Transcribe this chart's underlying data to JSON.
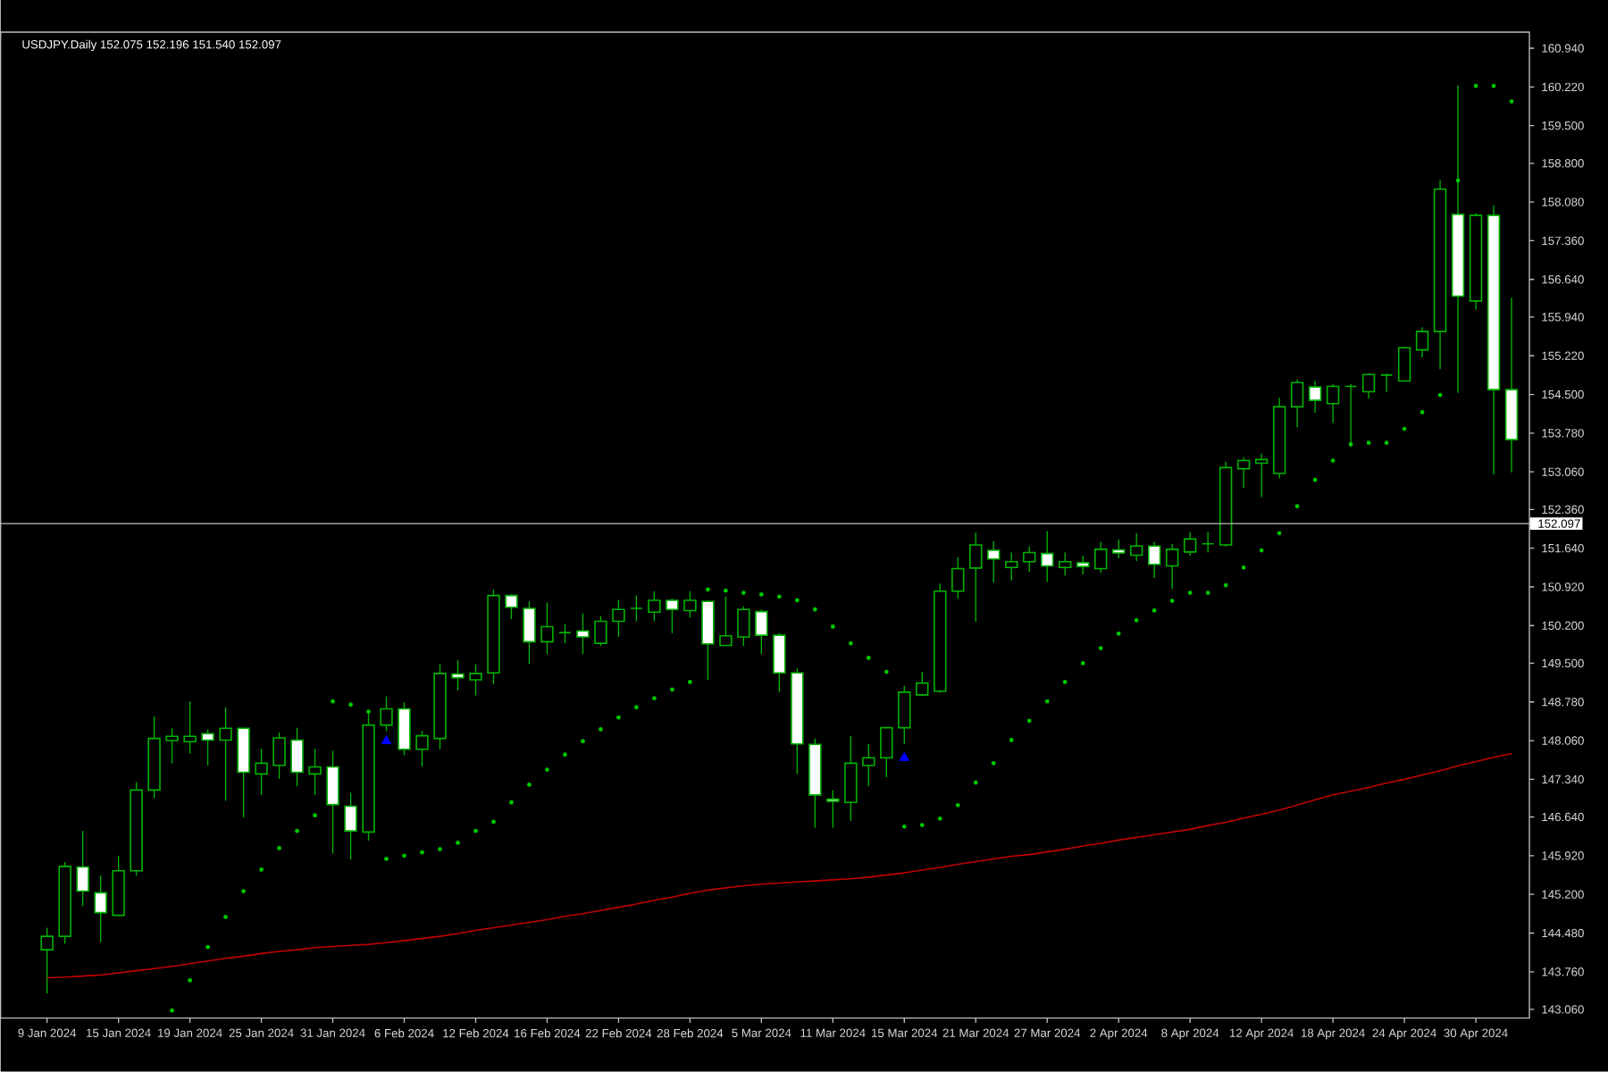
{
  "chart_data": {
    "type": "candlestick",
    "title": "USDJPY.Daily  152.075 152.196 151.540 152.097",
    "categories": [
      "9 Jan 2024",
      null,
      null,
      null,
      "15 Jan 2024",
      null,
      null,
      null,
      "19 Jan 2024",
      null,
      null,
      null,
      "25 Jan 2024",
      null,
      null,
      null,
      "31 Jan 2024",
      null,
      null,
      null,
      "6 Feb 2024",
      null,
      null,
      null,
      "12 Feb 2024",
      null,
      null,
      null,
      "16 Feb 2024",
      null,
      null,
      null,
      "22 Feb 2024",
      null,
      null,
      null,
      "28 Feb 2024",
      null,
      null,
      null,
      "5 Mar 2024",
      null,
      null,
      null,
      "11 Mar 2024",
      null,
      null,
      null,
      "15 Mar 2024",
      null,
      null,
      null,
      "21 Mar 2024",
      null,
      null,
      null,
      "27 Mar 2024",
      null,
      null,
      null,
      "2 Apr 2024",
      null,
      null,
      null,
      "8 Apr 2024",
      null,
      null,
      null,
      "12 Apr 2024",
      null,
      null,
      null,
      "18 Apr 2024",
      null,
      null,
      null,
      "24 Apr 2024",
      null,
      null,
      null,
      "30 Apr 2024",
      null,
      null
    ],
    "series": [
      {
        "color": "#00b400",
        "ohlc": [
          [
            144.17,
            144.58,
            143.36,
            144.42
          ],
          [
            144.42,
            145.8,
            144.28,
            145.72
          ],
          [
            145.71,
            146.38,
            144.98,
            145.26
          ],
          [
            145.23,
            145.55,
            144.31,
            144.86
          ],
          [
            144.81,
            145.92,
            144.8,
            145.64
          ],
          [
            145.64,
            147.29,
            145.55,
            147.14
          ],
          [
            147.14,
            148.51,
            146.99,
            148.1
          ],
          [
            148.06,
            148.29,
            147.64,
            148.14
          ],
          [
            148.04,
            148.79,
            147.82,
            148.14
          ],
          [
            148.19,
            148.27,
            147.6,
            148.07
          ],
          [
            148.07,
            148.68,
            146.94,
            148.29
          ],
          [
            148.29,
            148.3,
            146.63,
            147.47
          ],
          [
            147.44,
            147.91,
            147.05,
            147.64
          ],
          [
            147.6,
            148.21,
            147.35,
            148.11
          ],
          [
            148.07,
            148.3,
            147.21,
            147.47
          ],
          [
            147.44,
            147.91,
            147.05,
            147.57
          ],
          [
            147.57,
            147.87,
            145.96,
            146.87
          ],
          [
            146.84,
            147.09,
            145.85,
            146.38
          ],
          [
            146.36,
            148.6,
            146.2,
            148.35
          ],
          [
            148.35,
            148.88,
            148.24,
            148.65
          ],
          [
            148.65,
            148.77,
            147.79,
            147.9
          ],
          [
            147.9,
            148.24,
            147.58,
            148.15
          ],
          [
            148.1,
            149.48,
            147.9,
            149.31
          ],
          [
            149.3,
            149.56,
            148.99,
            149.23
          ],
          [
            149.19,
            149.48,
            148.9,
            149.31
          ],
          [
            149.32,
            150.87,
            149.11,
            150.76
          ],
          [
            150.76,
            150.78,
            150.32,
            150.54
          ],
          [
            150.52,
            150.65,
            149.49,
            149.9
          ],
          [
            149.9,
            150.63,
            149.67,
            150.18
          ],
          [
            150.07,
            150.23,
            149.87,
            150.07
          ],
          [
            150.1,
            150.43,
            149.67,
            149.99
          ],
          [
            149.87,
            150.38,
            149.82,
            150.28
          ],
          [
            150.28,
            150.68,
            149.99,
            150.5
          ],
          [
            150.52,
            150.76,
            150.28,
            150.52
          ],
          [
            150.45,
            150.84,
            150.28,
            150.67
          ],
          [
            150.67,
            150.7,
            150.06,
            150.5
          ],
          [
            150.48,
            150.84,
            150.35,
            150.67
          ],
          [
            150.65,
            150.67,
            149.19,
            149.86
          ],
          [
            149.83,
            150.74,
            149.82,
            150.01
          ],
          [
            149.99,
            150.56,
            149.82,
            150.5
          ],
          [
            150.46,
            150.5,
            149.67,
            150.02
          ],
          [
            150.02,
            150.06,
            148.96,
            149.32
          ],
          [
            149.32,
            149.4,
            147.44,
            148.0
          ],
          [
            147.99,
            148.1,
            146.44,
            147.05
          ],
          [
            146.97,
            147.14,
            146.44,
            146.93
          ],
          [
            146.91,
            148.15,
            146.57,
            147.64
          ],
          [
            147.6,
            148.0,
            147.21,
            147.74
          ],
          [
            147.74,
            148.32,
            147.38,
            148.3
          ],
          [
            148.3,
            149.08,
            148.0,
            148.96
          ],
          [
            148.91,
            149.34,
            148.9,
            149.13
          ],
          [
            148.98,
            150.98,
            148.95,
            150.84
          ],
          [
            150.84,
            151.47,
            150.7,
            151.26
          ],
          [
            151.27,
            151.93,
            150.27,
            151.7
          ],
          [
            151.6,
            151.77,
            151.0,
            151.44
          ],
          [
            151.28,
            151.56,
            151.04,
            151.39
          ],
          [
            151.39,
            151.67,
            151.2,
            151.56
          ],
          [
            151.54,
            151.96,
            151.01,
            151.31
          ],
          [
            151.28,
            151.56,
            151.13,
            151.39
          ],
          [
            151.37,
            151.5,
            151.15,
            151.3
          ],
          [
            151.26,
            151.76,
            151.18,
            151.62
          ],
          [
            151.61,
            151.8,
            151.45,
            151.55
          ],
          [
            151.51,
            151.92,
            151.4,
            151.68
          ],
          [
            151.68,
            151.76,
            151.09,
            151.34
          ],
          [
            151.31,
            151.72,
            150.88,
            151.62
          ],
          [
            151.57,
            151.94,
            151.5,
            151.81
          ],
          [
            151.72,
            151.94,
            151.56,
            151.72
          ],
          [
            151.7,
            153.25,
            151.67,
            153.14
          ],
          [
            153.12,
            153.33,
            152.76,
            153.27
          ],
          [
            153.22,
            153.4,
            152.59,
            153.29
          ],
          [
            153.03,
            154.44,
            152.94,
            154.27
          ],
          [
            154.27,
            154.78,
            153.89,
            154.72
          ],
          [
            154.64,
            154.75,
            154.16,
            154.39
          ],
          [
            154.33,
            154.69,
            153.97,
            154.65
          ],
          [
            154.65,
            154.69,
            153.56,
            154.65
          ],
          [
            154.55,
            154.89,
            154.42,
            154.87
          ],
          [
            154.86,
            154.89,
            154.55,
            154.86
          ],
          [
            154.75,
            155.39,
            154.74,
            155.37
          ],
          [
            155.33,
            155.75,
            155.19,
            155.67
          ],
          [
            155.67,
            158.48,
            154.97,
            158.32
          ],
          [
            157.85,
            160.25,
            154.53,
            156.33
          ],
          [
            156.24,
            157.87,
            156.08,
            157.83
          ],
          [
            157.83,
            158.02,
            153.01,
            154.59
          ],
          [
            154.59,
            156.3,
            153.05,
            153.66
          ]
        ]
      },
      {
        "type": "scatter",
        "color": "#00c800",
        "marker": "circle",
        "values": [
          null,
          null,
          null,
          null,
          null,
          null,
          null,
          143.04,
          143.6,
          144.22,
          144.78,
          145.26,
          145.66,
          146.06,
          146.38,
          146.67,
          148.79,
          148.73,
          148.6,
          145.86,
          145.92,
          145.98,
          146.04,
          146.16,
          146.38,
          146.55,
          146.91,
          147.24,
          147.52,
          147.8,
          148.05,
          148.27,
          148.49,
          148.68,
          148.85,
          149.01,
          149.15,
          150.87,
          150.85,
          150.81,
          150.78,
          150.74,
          150.67,
          150.5,
          150.18,
          149.87,
          149.6,
          149.34,
          146.46,
          146.49,
          146.61,
          146.86,
          147.28,
          147.64,
          148.07,
          148.43,
          148.79,
          149.15,
          149.5,
          149.78,
          150.05,
          150.3,
          150.48,
          150.66,
          150.81,
          150.81,
          150.95,
          151.28,
          151.6,
          151.92,
          152.42,
          152.91,
          153.27,
          153.57,
          153.6,
          153.6,
          153.86,
          154.17,
          154.49,
          158.48,
          160.24,
          160.24,
          159.95
        ]
      },
      {
        "type": "scatter",
        "color": "#0000ff",
        "marker": "triangle",
        "values": [
          null,
          null,
          null,
          null,
          null,
          null,
          null,
          null,
          null,
          null,
          null,
          null,
          null,
          null,
          null,
          null,
          null,
          null,
          null,
          148.05,
          null,
          null,
          null,
          null,
          null,
          null,
          null,
          null,
          null,
          null,
          null,
          null,
          null,
          null,
          null,
          null,
          null,
          null,
          null,
          null,
          null,
          null,
          null,
          null,
          null,
          null,
          null,
          null,
          147.74,
          null,
          null,
          null,
          null,
          null,
          null,
          null,
          null,
          null,
          null,
          null,
          null,
          null,
          null,
          null,
          null,
          null,
          null,
          null,
          null,
          null,
          null,
          null,
          null,
          null,
          null,
          null,
          null,
          null,
          null,
          null,
          null,
          null,
          null
        ]
      },
      {
        "type": "line",
        "color": "#c00000",
        "values": [
          143.65,
          143.66,
          143.68,
          143.7,
          143.74,
          143.78,
          143.82,
          143.86,
          143.91,
          143.96,
          144.01,
          144.05,
          144.1,
          144.14,
          144.17,
          144.21,
          144.23,
          144.25,
          144.27,
          144.3,
          144.34,
          144.38,
          144.42,
          144.47,
          144.53,
          144.58,
          144.63,
          144.68,
          144.73,
          144.79,
          144.84,
          144.9,
          144.96,
          145.02,
          145.09,
          145.15,
          145.22,
          145.28,
          145.32,
          145.36,
          145.39,
          145.41,
          145.43,
          145.45,
          145.47,
          145.49,
          145.52,
          145.56,
          145.6,
          145.65,
          145.7,
          145.76,
          145.81,
          145.86,
          145.91,
          145.94,
          145.99,
          146.04,
          146.1,
          146.15,
          146.21,
          146.26,
          146.31,
          146.36,
          146.41,
          146.48,
          146.54,
          146.62,
          146.69,
          146.77,
          146.86,
          146.96,
          147.05,
          147.12,
          147.19,
          147.27,
          147.34,
          147.42,
          147.5,
          147.59,
          147.67,
          147.75,
          147.82
        ]
      }
    ],
    "ylim": [
      142.9,
      161.24
    ],
    "yticks": [
      {
        "value": 160.94,
        "label": "160.940"
      },
      {
        "value": 160.22,
        "label": "160.220"
      },
      {
        "value": 159.5,
        "label": "159.500"
      },
      {
        "value": 158.8,
        "label": "158.800"
      },
      {
        "value": 158.08,
        "label": "158.080"
      },
      {
        "value": 157.36,
        "label": "157.360"
      },
      {
        "value": 156.64,
        "label": "156.640"
      },
      {
        "value": 155.94,
        "label": "155.940"
      },
      {
        "value": 155.22,
        "label": "155.220"
      },
      {
        "value": 154.5,
        "label": "154.500"
      },
      {
        "value": 153.78,
        "label": "153.780"
      },
      {
        "value": 153.06,
        "label": "153.060"
      },
      {
        "value": 152.36,
        "label": "152.360"
      },
      {
        "value": 151.64,
        "label": "151.640"
      },
      {
        "value": 150.92,
        "label": "150.920"
      },
      {
        "value": 150.2,
        "label": "150.200"
      },
      {
        "value": 149.5,
        "label": "149.500"
      },
      {
        "value": 148.78,
        "label": "148.780"
      },
      {
        "value": 148.06,
        "label": "148.060"
      },
      {
        "value": 147.34,
        "label": "147.340"
      },
      {
        "value": 146.64,
        "label": "146.640"
      },
      {
        "value": 145.92,
        "label": "145.920"
      },
      {
        "value": 145.2,
        "label": "145.200"
      },
      {
        "value": 144.48,
        "label": "144.480"
      },
      {
        "value": 143.76,
        "label": "143.760"
      },
      {
        "value": 143.06,
        "label": "143.060"
      }
    ],
    "ref_lines": [
      {
        "axis": "y",
        "value": 152.097,
        "label": "152.097",
        "color": "#c0c0c0",
        "line_style": "solid"
      }
    ]
  }
}
